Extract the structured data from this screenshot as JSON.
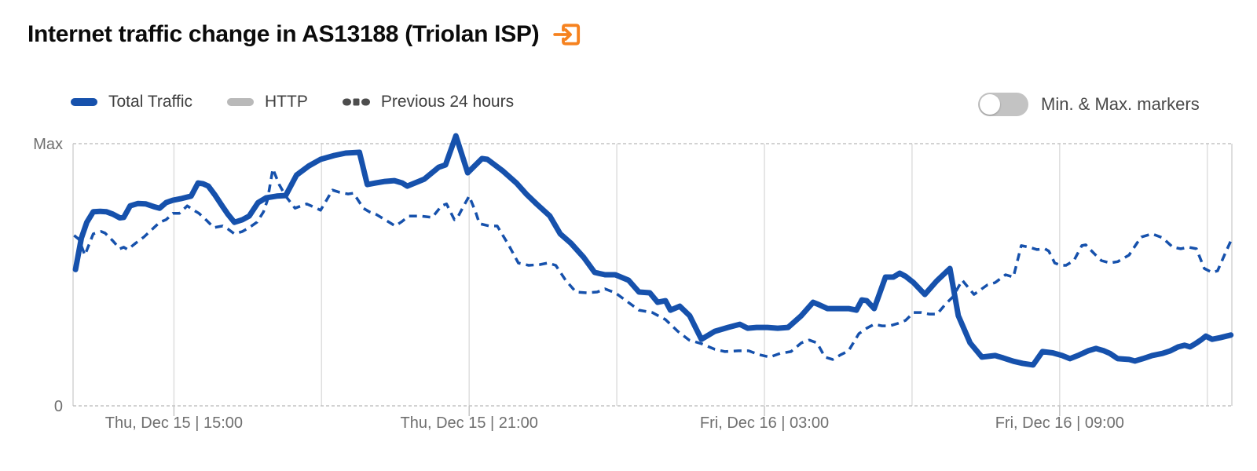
{
  "header": {
    "title": "Internet traffic change in AS13188 (Triolan ISP)",
    "link_icon": "external-link-arrow-into-box",
    "accent_color": "#F6821F"
  },
  "legend": {
    "items": [
      {
        "label": "Total Traffic",
        "marker": "solid-pill",
        "color": "#1651AC"
      },
      {
        "label": "HTTP",
        "marker": "solid-pill",
        "color": "#B9B9B9"
      },
      {
        "label": "Previous 24 hours",
        "marker": "dashed-pill",
        "color": "#4D4D4D"
      }
    ]
  },
  "toggle": {
    "label": "Min. & Max. markers",
    "state": "off"
  },
  "chart_data": {
    "type": "line",
    "title": "Internet traffic change in AS13188 (Triolan ISP)",
    "ylabel": "",
    "xlabel": "",
    "grid": "vertical-solid, horizontal-dashed-bounds",
    "legend_position": "top-left",
    "y_axis": {
      "max_label": "Max",
      "zero_label": "0",
      "range_pct": [
        0,
        100
      ]
    },
    "x_axis": {
      "t_start": 12.95,
      "t_end": 36.5,
      "unit": "hours-since-Thu-Dec-15-00:00",
      "gridlines_t": [
        15,
        18,
        21,
        24,
        27,
        30,
        33,
        36
      ],
      "ticks": [
        {
          "t": 15,
          "label": "Thu, Dec 15 | 15:00"
        },
        {
          "t": 21,
          "label": "Thu, Dec 15 | 21:00"
        },
        {
          "t": 27,
          "label": "Fri, Dec 16 | 03:00"
        },
        {
          "t": 33,
          "label": "Fri, Dec 16 | 09:00"
        }
      ]
    },
    "series": [
      {
        "name": "Total Traffic",
        "color": "#1651AC",
        "style": "solid",
        "width": 7,
        "points": [
          [
            13.0,
            52
          ],
          [
            13.12,
            64
          ],
          [
            13.23,
            70
          ],
          [
            13.36,
            74
          ],
          [
            13.5,
            74.2
          ],
          [
            13.63,
            74
          ],
          [
            13.76,
            73.1
          ],
          [
            13.9,
            71.7
          ],
          [
            13.98,
            71.9
          ],
          [
            14.11,
            76.3
          ],
          [
            14.27,
            77.2
          ],
          [
            14.43,
            77
          ],
          [
            14.59,
            76
          ],
          [
            14.71,
            75.4
          ],
          [
            14.84,
            77.5
          ],
          [
            14.98,
            78.4
          ],
          [
            15.14,
            79
          ],
          [
            15.35,
            80
          ],
          [
            15.49,
            85
          ],
          [
            15.59,
            84.7
          ],
          [
            15.7,
            83.8
          ],
          [
            15.83,
            80.5
          ],
          [
            15.99,
            76
          ],
          [
            16.1,
            73
          ],
          [
            16.23,
            70
          ],
          [
            16.39,
            71
          ],
          [
            16.53,
            72.4
          ],
          [
            16.71,
            77.5
          ],
          [
            16.87,
            79.3
          ],
          [
            17.09,
            80
          ],
          [
            17.27,
            80.2
          ],
          [
            17.49,
            88
          ],
          [
            17.74,
            91.5
          ],
          [
            17.98,
            94
          ],
          [
            18.26,
            95.5
          ],
          [
            18.49,
            96.4
          ],
          [
            18.77,
            96.7
          ],
          [
            18.93,
            84.4
          ],
          [
            19.1,
            85
          ],
          [
            19.29,
            85.6
          ],
          [
            19.48,
            85.9
          ],
          [
            19.64,
            85
          ],
          [
            19.74,
            83.8
          ],
          [
            20.09,
            86.5
          ],
          [
            20.38,
            91
          ],
          [
            20.52,
            91.9
          ],
          [
            20.73,
            103
          ],
          [
            20.97,
            88.9
          ],
          [
            21.26,
            94.3
          ],
          [
            21.37,
            94
          ],
          [
            21.69,
            89.5
          ],
          [
            21.96,
            85
          ],
          [
            22.16,
            80.8
          ],
          [
            22.37,
            77
          ],
          [
            22.64,
            72.4
          ],
          [
            22.85,
            65.6
          ],
          [
            23.07,
            62
          ],
          [
            23.33,
            56.6
          ],
          [
            23.55,
            50.9
          ],
          [
            23.76,
            50
          ],
          [
            23.97,
            50
          ],
          [
            24.24,
            47.9
          ],
          [
            24.45,
            43.4
          ],
          [
            24.67,
            43.1
          ],
          [
            24.83,
            39.5
          ],
          [
            24.99,
            40.1
          ],
          [
            25.09,
            36.5
          ],
          [
            25.28,
            38
          ],
          [
            25.48,
            34.4
          ],
          [
            25.72,
            25.4
          ],
          [
            25.99,
            28.4
          ],
          [
            26.26,
            29.9
          ],
          [
            26.5,
            31.1
          ],
          [
            26.66,
            29.6
          ],
          [
            26.84,
            29.9
          ],
          [
            27.06,
            29.9
          ],
          [
            27.27,
            29.6
          ],
          [
            27.48,
            29.9
          ],
          [
            27.75,
            34.4
          ],
          [
            27.99,
            39.5
          ],
          [
            28.07,
            38.9
          ],
          [
            28.28,
            37.1
          ],
          [
            28.5,
            37.1
          ],
          [
            28.71,
            37.1
          ],
          [
            28.87,
            36.5
          ],
          [
            28.98,
            40.4
          ],
          [
            29.08,
            40.1
          ],
          [
            29.23,
            37.1
          ],
          [
            29.46,
            49.1
          ],
          [
            29.62,
            49.1
          ],
          [
            29.75,
            50.6
          ],
          [
            29.87,
            49.4
          ],
          [
            30.03,
            47
          ],
          [
            30.26,
            42.5
          ],
          [
            30.5,
            47.6
          ],
          [
            30.77,
            52.4
          ],
          [
            30.94,
            34.4
          ],
          [
            31.18,
            24
          ],
          [
            31.42,
            18.6
          ],
          [
            31.69,
            19.2
          ],
          [
            31.85,
            18.3
          ],
          [
            32.06,
            17
          ],
          [
            32.25,
            16.2
          ],
          [
            32.46,
            15.6
          ],
          [
            32.65,
            20.7
          ],
          [
            32.86,
            20.2
          ],
          [
            33.05,
            19.2
          ],
          [
            33.21,
            18
          ],
          [
            33.37,
            19.2
          ],
          [
            33.58,
            21
          ],
          [
            33.74,
            21.9
          ],
          [
            33.9,
            21
          ],
          [
            34.02,
            20
          ],
          [
            34.18,
            18
          ],
          [
            34.41,
            17.7
          ],
          [
            34.53,
            17.1
          ],
          [
            34.69,
            18
          ],
          [
            34.88,
            19.2
          ],
          [
            35.09,
            20
          ],
          [
            35.25,
            21
          ],
          [
            35.41,
            22.5
          ],
          [
            35.54,
            23.1
          ],
          [
            35.65,
            22.5
          ],
          [
            35.76,
            23.7
          ],
          [
            35.89,
            25.4
          ],
          [
            35.97,
            26.6
          ],
          [
            36.1,
            25.4
          ],
          [
            36.26,
            26
          ],
          [
            36.48,
            27
          ]
        ]
      },
      {
        "name": "HTTP",
        "color": "#B9B9B9",
        "style": "solid",
        "width": 4,
        "visibility": "coincides-with-total-traffic-hidden-behind",
        "points": []
      },
      {
        "name": "Previous 24 hours",
        "color": "#1651AC",
        "style": "dashed",
        "width": 3.5,
        "points": [
          [
            12.97,
            65
          ],
          [
            13.07,
            63.5
          ],
          [
            13.19,
            57.5
          ],
          [
            13.36,
            65.6
          ],
          [
            13.52,
            66.5
          ],
          [
            13.6,
            65.9
          ],
          [
            13.76,
            62.9
          ],
          [
            13.9,
            59.9
          ],
          [
            13.98,
            60.5
          ],
          [
            14.06,
            59.6
          ],
          [
            14.22,
            62
          ],
          [
            14.39,
            64.4
          ],
          [
            14.51,
            66.5
          ],
          [
            14.71,
            70
          ],
          [
            14.84,
            71
          ],
          [
            14.98,
            73.4
          ],
          [
            15.11,
            73.4
          ],
          [
            15.27,
            76.3
          ],
          [
            15.4,
            74.6
          ],
          [
            15.51,
            73.4
          ],
          [
            15.65,
            71
          ],
          [
            15.81,
            68
          ],
          [
            15.99,
            68.6
          ],
          [
            16.1,
            67.4
          ],
          [
            16.23,
            65.6
          ],
          [
            16.39,
            66.5
          ],
          [
            16.53,
            68
          ],
          [
            16.69,
            70.1
          ],
          [
            16.82,
            74
          ],
          [
            16.9,
            78.4
          ],
          [
            17.01,
            90.4
          ],
          [
            17.14,
            84.4
          ],
          [
            17.27,
            80
          ],
          [
            17.46,
            75.4
          ],
          [
            17.59,
            76.3
          ],
          [
            17.7,
            77
          ],
          [
            17.86,
            75.7
          ],
          [
            17.98,
            74.6
          ],
          [
            18.1,
            78.4
          ],
          [
            18.22,
            82.3
          ],
          [
            18.37,
            81.4
          ],
          [
            18.54,
            80.8
          ],
          [
            18.65,
            81.1
          ],
          [
            18.85,
            75.4
          ],
          [
            18.97,
            74
          ],
          [
            19.1,
            73.1
          ],
          [
            19.29,
            71
          ],
          [
            19.5,
            68.6
          ],
          [
            19.64,
            70.4
          ],
          [
            19.77,
            72.4
          ],
          [
            20.01,
            72.4
          ],
          [
            20.25,
            71.9
          ],
          [
            20.44,
            76.3
          ],
          [
            20.54,
            77
          ],
          [
            20.7,
            71
          ],
          [
            20.78,
            72.4
          ],
          [
            20.89,
            76.3
          ],
          [
            21.0,
            80
          ],
          [
            21.13,
            74
          ],
          [
            21.21,
            69.5
          ],
          [
            21.41,
            68.6
          ],
          [
            21.57,
            68.6
          ],
          [
            21.8,
            61.4
          ],
          [
            22.0,
            54.5
          ],
          [
            22.21,
            53.6
          ],
          [
            22.44,
            53.9
          ],
          [
            22.6,
            54.5
          ],
          [
            22.76,
            53.6
          ],
          [
            22.96,
            47.9
          ],
          [
            23.17,
            43.4
          ],
          [
            23.39,
            43.1
          ],
          [
            23.6,
            43.4
          ],
          [
            23.76,
            44.6
          ],
          [
            23.97,
            43.1
          ],
          [
            24.19,
            40.1
          ],
          [
            24.45,
            36.5
          ],
          [
            24.72,
            35.6
          ],
          [
            24.99,
            32.9
          ],
          [
            25.24,
            28.4
          ],
          [
            25.47,
            25.1
          ],
          [
            25.72,
            23.7
          ],
          [
            25.99,
            21.6
          ],
          [
            26.2,
            20.7
          ],
          [
            26.47,
            21
          ],
          [
            26.68,
            21
          ],
          [
            26.9,
            19.5
          ],
          [
            27.11,
            18.6
          ],
          [
            27.32,
            20
          ],
          [
            27.54,
            20.7
          ],
          [
            27.75,
            24
          ],
          [
            27.91,
            25.1
          ],
          [
            28.07,
            24
          ],
          [
            28.23,
            18.6
          ],
          [
            28.39,
            17.7
          ],
          [
            28.55,
            19.5
          ],
          [
            28.71,
            21
          ],
          [
            28.92,
            27.5
          ],
          [
            29.08,
            29.6
          ],
          [
            29.23,
            31.1
          ],
          [
            29.39,
            30.5
          ],
          [
            29.55,
            30.5
          ],
          [
            29.71,
            31.4
          ],
          [
            29.87,
            32.6
          ],
          [
            30.03,
            35.6
          ],
          [
            30.19,
            35.6
          ],
          [
            30.35,
            35
          ],
          [
            30.51,
            35
          ],
          [
            30.67,
            38.6
          ],
          [
            30.83,
            41.6
          ],
          [
            31.02,
            47.9
          ],
          [
            31.26,
            42.5
          ],
          [
            31.53,
            46.1
          ],
          [
            31.69,
            47
          ],
          [
            31.9,
            50
          ],
          [
            32.06,
            49.1
          ],
          [
            32.22,
            61.1
          ],
          [
            32.38,
            60.5
          ],
          [
            32.54,
            59.6
          ],
          [
            32.7,
            59.9
          ],
          [
            32.78,
            59
          ],
          [
            32.9,
            54.5
          ],
          [
            33.02,
            53.6
          ],
          [
            33.13,
            53.6
          ],
          [
            33.29,
            55.4
          ],
          [
            33.45,
            61.1
          ],
          [
            33.53,
            61.4
          ],
          [
            33.7,
            58.1
          ],
          [
            33.85,
            55.4
          ],
          [
            34.02,
            54.5
          ],
          [
            34.18,
            55
          ],
          [
            34.41,
            57.5
          ],
          [
            34.57,
            62
          ],
          [
            34.66,
            64.4
          ],
          [
            34.88,
            65.6
          ],
          [
            35.09,
            64.1
          ],
          [
            35.3,
            60.5
          ],
          [
            35.46,
            59.9
          ],
          [
            35.62,
            60.5
          ],
          [
            35.78,
            59.9
          ],
          [
            35.94,
            52.4
          ],
          [
            36.1,
            50.9
          ],
          [
            36.21,
            51.5
          ],
          [
            36.37,
            58.4
          ],
          [
            36.48,
            62.9
          ]
        ]
      }
    ]
  }
}
